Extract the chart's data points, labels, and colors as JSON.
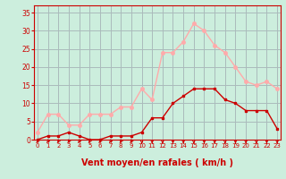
{
  "hours": [
    0,
    1,
    2,
    3,
    4,
    5,
    6,
    7,
    8,
    9,
    10,
    11,
    12,
    13,
    14,
    15,
    16,
    17,
    18,
    19,
    20,
    21,
    22,
    23
  ],
  "wind_avg": [
    0,
    1,
    1,
    2,
    1,
    0,
    0,
    1,
    1,
    1,
    2,
    6,
    6,
    10,
    12,
    14,
    14,
    14,
    11,
    10,
    8,
    8,
    8,
    3
  ],
  "wind_gust": [
    2,
    7,
    7,
    4,
    4,
    7,
    7,
    7,
    9,
    9,
    14,
    11,
    24,
    24,
    27,
    32,
    30,
    26,
    24,
    20,
    16,
    15,
    16,
    14
  ],
  "bg_color": "#cceedd",
  "grid_color": "#aabbbb",
  "avg_color": "#cc0000",
  "gust_color": "#ffaaaa",
  "axis_label_color": "#cc0000",
  "tick_color": "#cc0000",
  "xlabel": "Vent moyen/en rafales ( km/h )",
  "yticks": [
    0,
    5,
    10,
    15,
    20,
    25,
    30,
    35
  ],
  "ylim": [
    0,
    37
  ],
  "xlim": [
    -0.3,
    23.3
  ]
}
